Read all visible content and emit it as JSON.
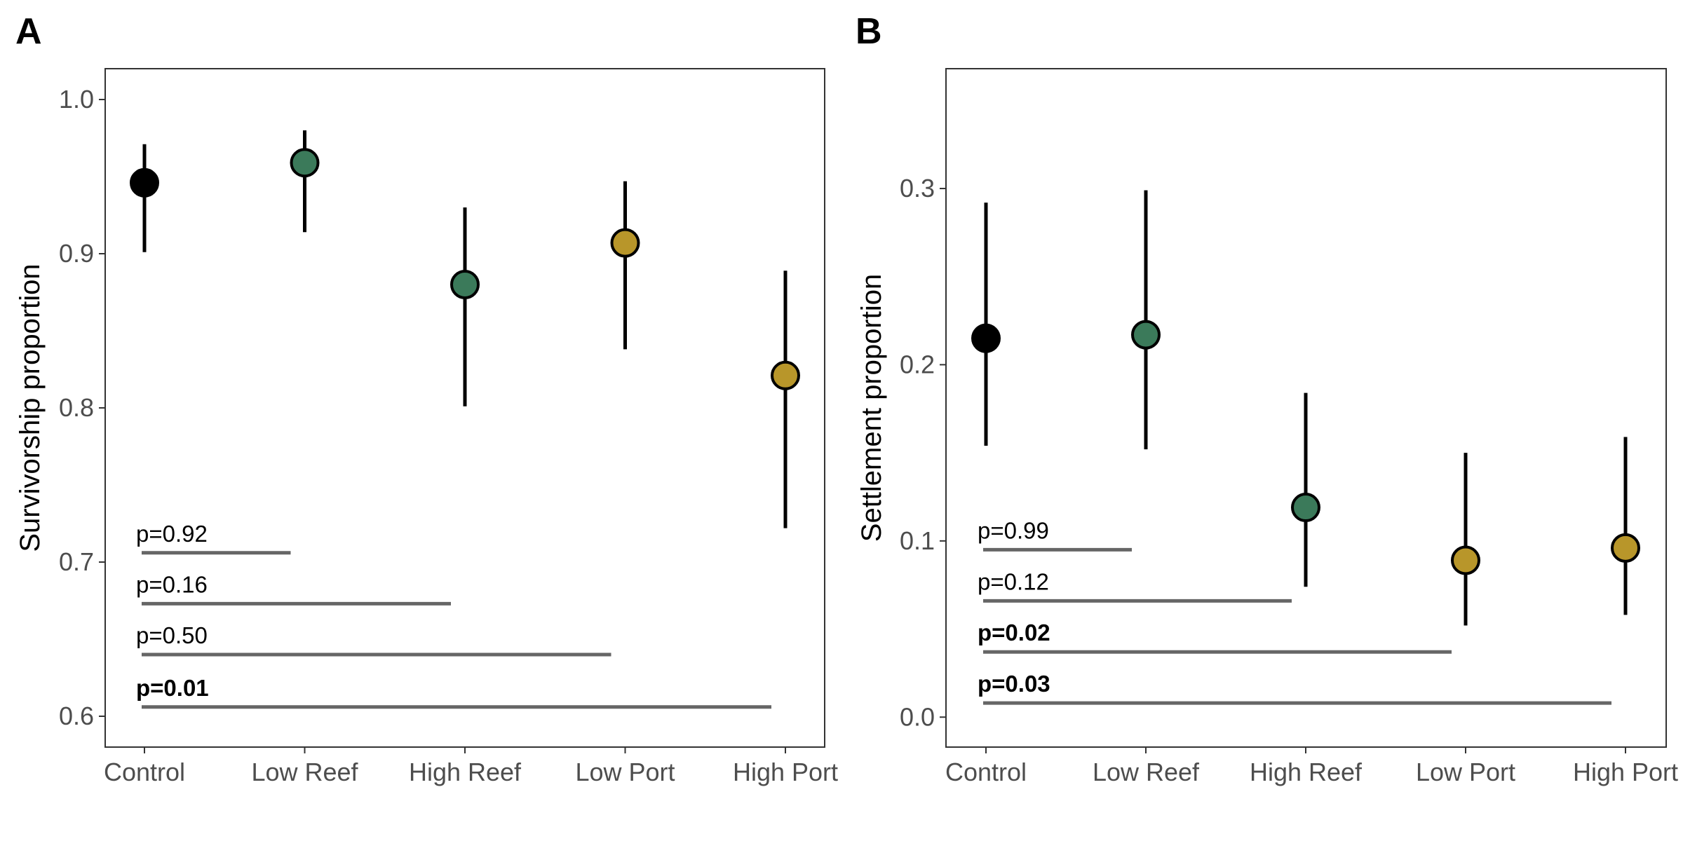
{
  "chart_data": [
    {
      "type": "scatter",
      "panel_label": "A",
      "ylabel": "Survivorship proportion",
      "categories": [
        "Control",
        "Low Reef",
        "High Reef",
        "Low Port",
        "High Port"
      ],
      "values": [
        0.946,
        0.959,
        0.88,
        0.907,
        0.821
      ],
      "lower": [
        0.901,
        0.914,
        0.801,
        0.838,
        0.722
      ],
      "upper": [
        0.971,
        0.98,
        0.93,
        0.947,
        0.889
      ],
      "colors": [
        "#000000",
        "#3b7a5a",
        "#3b7a5a",
        "#b8962a",
        "#b8962a"
      ],
      "ylim": [
        0.58,
        1.02
      ],
      "yticks": [
        "1.0",
        "0.9",
        "0.8",
        "0.7",
        "0.6"
      ],
      "ytick_values": [
        1.0,
        0.9,
        0.8,
        0.7,
        0.6
      ],
      "comparisons": [
        {
          "label": "p=0.92",
          "bold": false,
          "to_index": 1,
          "y": 0.706
        },
        {
          "label": "p=0.16",
          "bold": false,
          "to_index": 2,
          "y": 0.673
        },
        {
          "label": "p=0.50",
          "bold": false,
          "to_index": 3,
          "y": 0.64
        },
        {
          "label": "p=0.01",
          "bold": true,
          "to_index": 4,
          "y": 0.606
        }
      ],
      "grid": false
    },
    {
      "type": "scatter",
      "panel_label": "B",
      "ylabel": "Settlement proportion",
      "categories": [
        "Control",
        "Low Reef",
        "High Reef",
        "Low Port",
        "High Port"
      ],
      "values": [
        0.215,
        0.217,
        0.119,
        0.089,
        0.096
      ],
      "lower": [
        0.154,
        0.152,
        0.074,
        0.052,
        0.058
      ],
      "upper": [
        0.292,
        0.299,
        0.184,
        0.15,
        0.159
      ],
      "colors": [
        "#000000",
        "#3b7a5a",
        "#3b7a5a",
        "#b8962a",
        "#b8962a"
      ],
      "ylim": [
        -0.017,
        0.368
      ],
      "yticks": [
        "0.3",
        "0.2",
        "0.1",
        "0.0"
      ],
      "ytick_values": [
        0.3,
        0.2,
        0.1,
        0.0
      ],
      "comparisons": [
        {
          "label": "p=0.99",
          "bold": false,
          "to_index": 1,
          "y": 0.095
        },
        {
          "label": "p=0.12",
          "bold": false,
          "to_index": 2,
          "y": 0.066
        },
        {
          "label": "p=0.02",
          "bold": true,
          "to_index": 3,
          "y": 0.037
        },
        {
          "label": "p=0.03",
          "bold": true,
          "to_index": 4,
          "y": 0.008
        }
      ],
      "grid": false
    }
  ]
}
